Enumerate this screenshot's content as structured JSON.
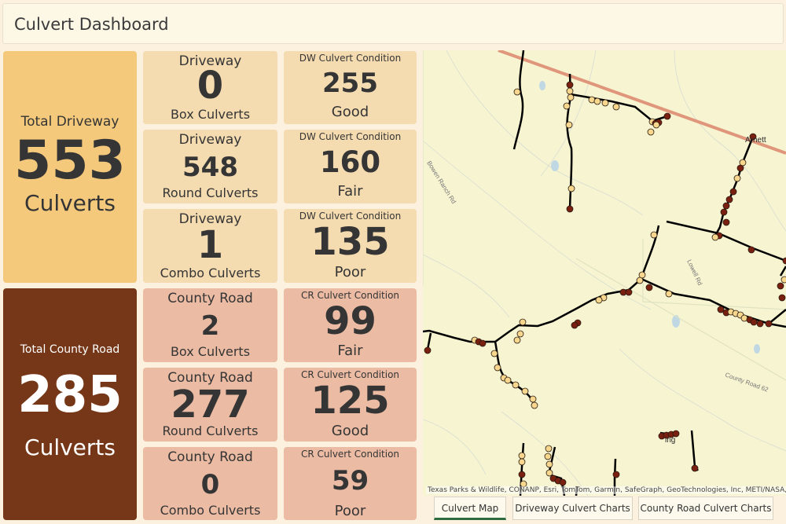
{
  "header": {
    "title": "Culvert Dashboard"
  },
  "driveway_total": {
    "label": "Total Driveway",
    "value": "553",
    "unit": "Culverts"
  },
  "county_total": {
    "label": "Total County Road",
    "value": "285",
    "unit": "Culverts"
  },
  "driveway_types": [
    {
      "top": "Driveway",
      "value": "0",
      "bottom": "Box Culverts"
    },
    {
      "top": "Driveway",
      "value": "548",
      "bottom": "Round Culverts"
    },
    {
      "top": "Driveway",
      "value": "1",
      "bottom": "Combo Culverts"
    }
  ],
  "driveway_conditions": [
    {
      "top": "DW Culvert Condition",
      "value": "255",
      "bottom": "Good"
    },
    {
      "top": "DW Culvert Condition",
      "value": "160",
      "bottom": "Fair"
    },
    {
      "top": "DW Culvert Condition",
      "value": "135",
      "bottom": "Poor"
    }
  ],
  "county_types": [
    {
      "top": "County Road",
      "value": "2",
      "bottom": "Box Culverts"
    },
    {
      "top": "County Road",
      "value": "277",
      "bottom": "Round Culverts"
    },
    {
      "top": "County Road",
      "value": "0",
      "bottom": "Combo Culverts"
    }
  ],
  "county_conditions": [
    {
      "top": "CR Culvert Condition",
      "value": "99",
      "bottom": "Fair"
    },
    {
      "top": "CR Culvert Condition",
      "value": "125",
      "bottom": "Good"
    },
    {
      "top": "CR Culvert Condition",
      "value": "59",
      "bottom": "Poor"
    }
  ],
  "map": {
    "labels": {
      "arnett": "Arnett",
      "bowen_ranch": "Bowen Ranch Rd",
      "lowell": "Lowell Rd",
      "county_road_62": "County Road 62",
      "partial_place": "ing"
    },
    "attribution": "Texas Parks & Wildlife, CONANP, Esri, TomTom, Garmin, SafeGraph, GeoTechnologies, Inc, METI/NASA,",
    "colors": {
      "background": "#f7f4d1",
      "road": "#000000",
      "highway": "#e0967a",
      "good": "#f6d78d",
      "poor": "#7a2010"
    }
  },
  "tabs": [
    {
      "label": "Culvert Map",
      "active": true
    },
    {
      "label": "Driveway Culvert Charts",
      "active": false
    },
    {
      "label": "County Road Culvert Charts",
      "active": false
    }
  ]
}
